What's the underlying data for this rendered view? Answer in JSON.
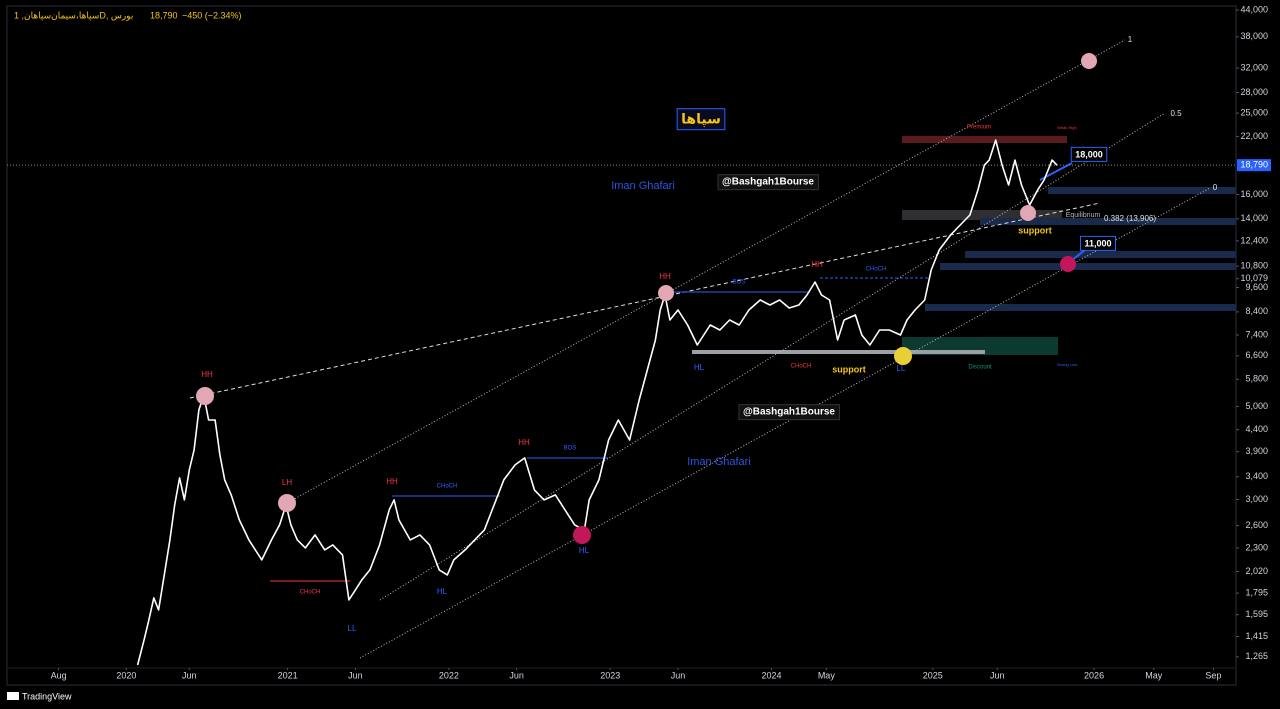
{
  "chart_data": {
    "type": "line",
    "header": {
      "symbol": "سپاها،سیمان‌سپاهان, 1D, بورس",
      "change": "−450 (−2.34%)"
    },
    "last_price": {
      "value": 18790,
      "label": "18,790"
    },
    "color": "#ffffff",
    "log_scale": true,
    "grid": false,
    "xlim": [
      2019.26,
      2026.88
    ],
    "xticks": [
      {
        "value": 2019.58,
        "label": "Aug"
      },
      {
        "value": 2020,
        "label": "2020"
      },
      {
        "value": 2020.39,
        "label": "Jun"
      },
      {
        "value": 2021,
        "label": "2021"
      },
      {
        "value": 2021.42,
        "label": "Jun"
      },
      {
        "value": 2022,
        "label": "2022"
      },
      {
        "value": 2022.42,
        "label": "Jun"
      },
      {
        "value": 2023,
        "label": "2023"
      },
      {
        "value": 2023.42,
        "label": "Jun"
      },
      {
        "value": 2024,
        "label": "2024"
      },
      {
        "value": 2024.34,
        "label": "May"
      },
      {
        "value": 2025,
        "label": "2025"
      },
      {
        "value": 2025.4,
        "label": "Jun"
      },
      {
        "value": 2026,
        "label": "2026"
      },
      {
        "value": 2026.37,
        "label": "May"
      },
      {
        "value": 2026.74,
        "label": "Sep"
      }
    ],
    "ylim": [
      1190,
      45000
    ],
    "yticks": [
      {
        "value": 1265,
        "label": "1,265"
      },
      {
        "value": 1415,
        "label": "1,415"
      },
      {
        "value": 1595,
        "label": "1,595"
      },
      {
        "value": 1795,
        "label": "1,795"
      },
      {
        "value": 2020,
        "label": "2,020"
      },
      {
        "value": 2300,
        "label": "2,300"
      },
      {
        "value": 2600,
        "label": "2,600"
      },
      {
        "value": 3000,
        "label": "3,000"
      },
      {
        "value": 3400,
        "label": "3,400"
      },
      {
        "value": 3900,
        "label": "3,900"
      },
      {
        "value": 4400,
        "label": "4,400"
      },
      {
        "value": 5000,
        "label": "5,000"
      },
      {
        "value": 5800,
        "label": "5,800"
      },
      {
        "value": 6600,
        "label": "6,600"
      },
      {
        "value": 7400,
        "label": "7,400"
      },
      {
        "value": 8400,
        "label": "8,400"
      },
      {
        "value": 9600,
        "label": "9,600"
      },
      {
        "value": 10079,
        "label": "10,079"
      },
      {
        "value": 10800,
        "label": "10,800"
      },
      {
        "value": 12400,
        "label": "12,400"
      },
      {
        "value": 14000,
        "label": "14,000"
      },
      {
        "value": 16000,
        "label": "16,000"
      },
      {
        "value": 22000,
        "label": "22,000"
      },
      {
        "value": 25000,
        "label": "25,000"
      },
      {
        "value": 28000,
        "label": "28,000"
      },
      {
        "value": 32000,
        "label": "32,000"
      },
      {
        "value": 38000,
        "label": "38,000"
      },
      {
        "value": 44000,
        "label": "44,000"
      }
    ],
    "x": [
      2020.07,
      2020.11,
      2020.14,
      2020.17,
      2020.2,
      2020.24,
      2020.27,
      2020.3,
      2020.33,
      2020.36,
      2020.39,
      2020.42,
      2020.45,
      2020.48,
      2020.51,
      2020.55,
      2020.58,
      2020.61,
      2020.65,
      2020.7,
      2020.76,
      2020.84,
      2020.9,
      2020.95,
      2020.99,
      2021.02,
      2021.06,
      2021.11,
      2021.17,
      2021.23,
      2021.28,
      2021.34,
      2021.38,
      2021.42,
      2021.46,
      2021.51,
      2021.57,
      2021.63,
      2021.66,
      2021.69,
      2021.76,
      2021.82,
      2021.88,
      2021.94,
      2021.99,
      2022.03,
      2022.1,
      2022.16,
      2022.22,
      2022.28,
      2022.34,
      2022.41,
      2022.47,
      2022.53,
      2022.59,
      2022.66,
      2022.72,
      2022.78,
      2022.84,
      2022.87,
      2022.93,
      2022.99,
      2023.05,
      2023.12,
      2023.18,
      2023.23,
      2023.28,
      2023.31,
      2023.34,
      2023.37,
      2023.42,
      2023.48,
      2023.54,
      2023.62,
      2023.68,
      2023.74,
      2023.8,
      2023.86,
      2023.93,
      2023.99,
      2024.05,
      2024.11,
      2024.17,
      2024.22,
      2024.27,
      2024.31,
      2024.36,
      2024.41,
      2024.45,
      2024.52,
      2024.56,
      2024.61,
      2024.67,
      2024.73,
      2024.8,
      2024.84,
      2024.89,
      2024.95,
      2024.99,
      2025.04,
      2025.11,
      2025.17,
      2025.23,
      2025.28,
      2025.32,
      2025.35,
      2025.39,
      2025.43,
      2025.47,
      2025.51,
      2025.55,
      2025.6,
      2025.65,
      2025.69,
      2025.74,
      2025.77
    ],
    "values": [
      1210,
      1389,
      1550,
      1748,
      1637,
      2039,
      2403,
      2912,
      3377,
      2993,
      3528,
      3938,
      4904,
      5324,
      4641,
      4641,
      3831,
      3340,
      3077,
      2682,
      2403,
      2154,
      2403,
      2610,
      2912,
      2610,
      2403,
      2300,
      2470,
      2275,
      2339,
      2213,
      1729,
      1827,
      1930,
      2039,
      2339,
      2833,
      2993,
      2682,
      2403,
      2470,
      2339,
      2039,
      1983,
      2154,
      2275,
      2403,
      2539,
      2912,
      3340,
      3627,
      3769,
      3162,
      2993,
      3077,
      2833,
      2610,
      2539,
      2993,
      3340,
      4159,
      4641,
      4159,
      5180,
      6106,
      7199,
      8486,
      9214,
      8035,
      8486,
      7817,
      7004,
      7817,
      7606,
      8035,
      7817,
      8486,
      8965,
      8724,
      8965,
      8581,
      8724,
      9214,
      9896,
      9214,
      8965,
      7199,
      8035,
      8258,
      7399,
      7004,
      7606,
      7606,
      7399,
      8035,
      8486,
      8965,
      10570,
      11795,
      12800,
      13530,
      14290,
      16390,
      18800,
      19320,
      21560,
      18800,
      16850,
      19320,
      16850,
      15090,
      16390,
      17320,
      19320,
      18790
    ],
    "annotations": [
      "HH",
      "LH",
      "HH",
      "HH",
      "HH",
      "HH",
      "HL",
      "HL",
      "LL",
      "HL",
      "LL",
      "CHoCH",
      "CHoCH",
      "CHoCH",
      "CHoCH",
      "BOS",
      "BOS",
      "support",
      "support",
      "Premium",
      "Weak High",
      "Equilibrium",
      "Discount",
      "Strong Low",
      "0.382 (13,906)",
      "1",
      "0.5",
      "0",
      "Iman Ghafari",
      "Iman Ghafari",
      "@Bashgah1Bourse",
      "@Bashgah1Bourse",
      "سپاها",
      "18,000",
      "11,000"
    ],
    "footer": "TradingView"
  }
}
